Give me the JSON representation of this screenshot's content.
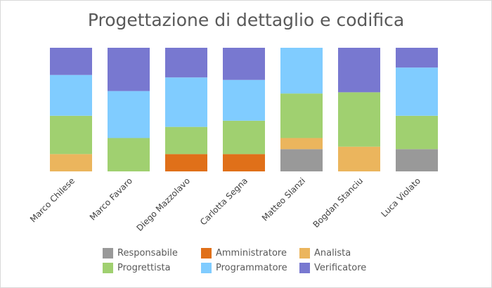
{
  "chart_data": {
    "type": "bar",
    "stacked": true,
    "percent_stacked": true,
    "title": "Progettazione di dettaglio e codifica",
    "xlabel": "",
    "ylabel": "",
    "ylim": [
      0,
      100
    ],
    "grid": false,
    "legend_position": "bottom",
    "categories": [
      "Marco Chilese",
      "Marco Favaro",
      "Diego Mazzolavo",
      "Carlotta Segna",
      "Matteo Slanzi",
      "Bogdan Stanciu",
      "Luca Violato"
    ],
    "series": [
      {
        "name": "Responsabile",
        "color": "#999999",
        "values": [
          0,
          0,
          0,
          0,
          18,
          0,
          18
        ]
      },
      {
        "name": "Amministratore",
        "color": "#e07019",
        "values": [
          0,
          0,
          14,
          14,
          0,
          0,
          0
        ]
      },
      {
        "name": "Analista",
        "color": "#ebb55d",
        "values": [
          14,
          0,
          0,
          0,
          9,
          20,
          0
        ]
      },
      {
        "name": "Progrettista",
        "color": "#a0d070",
        "values": [
          31,
          27,
          22,
          27,
          36,
          44,
          27
        ]
      },
      {
        "name": "Programmatore",
        "color": "#80ccff",
        "values": [
          33,
          38,
          40,
          33,
          37,
          0,
          39
        ]
      },
      {
        "name": "Verificatore",
        "color": "#7878d0",
        "values": [
          22,
          35,
          24,
          26,
          0,
          36,
          16
        ]
      }
    ]
  }
}
